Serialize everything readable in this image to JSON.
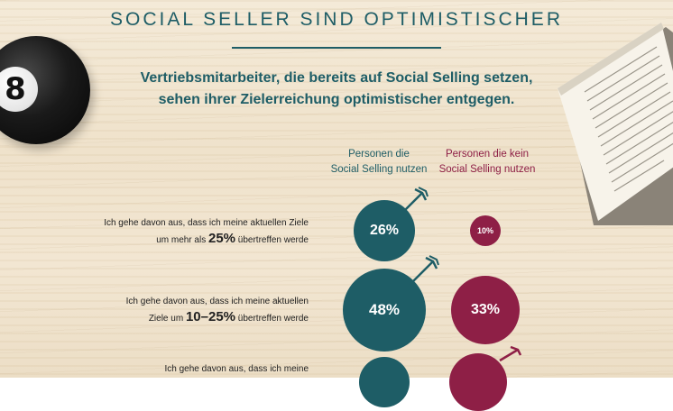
{
  "title": "SOCIAL SELLER SIND OPTIMISTISCHER",
  "subtitle_line1": "Vertriebsmitarbeiter, die bereits auf Social Selling setzen,",
  "subtitle_line2": "sehen ihrer Zielerreichung optimistischer entgegen.",
  "columns": {
    "a_line1": "Personen die",
    "a_line2": "Social Selling nutzen",
    "b_line1": "Personen die kein",
    "b_line2": "Social Selling nutzen"
  },
  "rows": [
    {
      "line1": "Ich gehe davon aus, dass ich meine aktuellen Ziele",
      "line2_pre": "um mehr als",
      "line2_big": "25%",
      "line2_post": "übertreffen werde",
      "a": "26%",
      "b": "10%"
    },
    {
      "line1": "Ich gehe davon aus, dass ich meine aktuellen",
      "line2_pre": "Ziele um",
      "line2_big": "10–25%",
      "line2_post": "übertreffen werde",
      "a": "48%",
      "b": "33%"
    },
    {
      "line1": "Ich gehe davon aus, dass ich meine"
    }
  ],
  "magic_ball_label": "8",
  "colors": {
    "teal": "#1e5d66",
    "plum": "#8e1f46"
  }
}
